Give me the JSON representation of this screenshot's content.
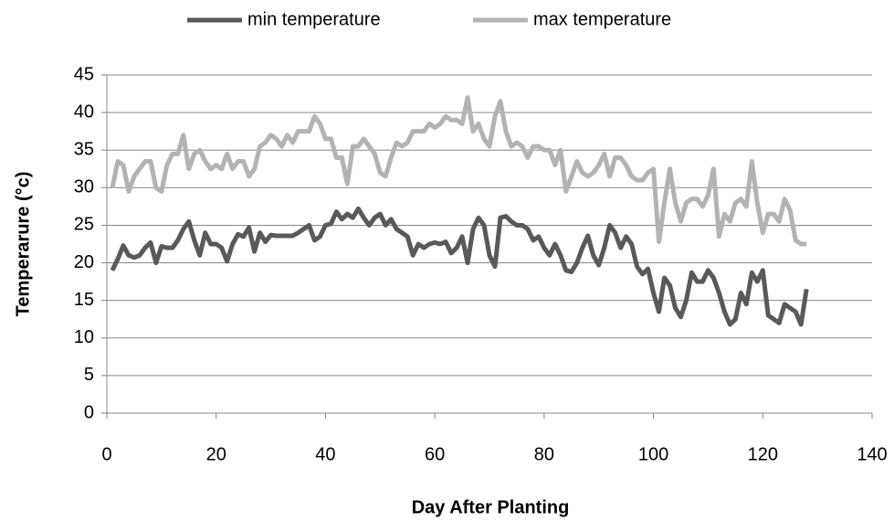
{
  "chart_data": {
    "type": "line",
    "x_label": "Day After Planting",
    "y_label": "Temperarure (°c)",
    "x": [
      1,
      2,
      3,
      4,
      5,
      6,
      7,
      8,
      9,
      10,
      11,
      12,
      13,
      14,
      15,
      16,
      17,
      18,
      19,
      20,
      21,
      22,
      23,
      24,
      25,
      26,
      27,
      28,
      29,
      30,
      31,
      32,
      33,
      34,
      35,
      36,
      37,
      38,
      39,
      40,
      41,
      42,
      43,
      44,
      45,
      46,
      47,
      48,
      49,
      50,
      51,
      52,
      53,
      54,
      55,
      56,
      57,
      58,
      59,
      60,
      61,
      62,
      63,
      64,
      65,
      66,
      67,
      68,
      69,
      70,
      71,
      72,
      73,
      74,
      75,
      76,
      77,
      78,
      79,
      80,
      81,
      82,
      83,
      84,
      85,
      86,
      87,
      88,
      89,
      90,
      91,
      92,
      93,
      94,
      95,
      96,
      97,
      98,
      99,
      100,
      101,
      102,
      103,
      104,
      105,
      106,
      107,
      108,
      109,
      110,
      111,
      112,
      113,
      114,
      115,
      116,
      117,
      118,
      119,
      120,
      121,
      122,
      123,
      124,
      125,
      126,
      127,
      128
    ],
    "series": [
      {
        "name": "min temperature",
        "color": "#595959",
        "values": [
          19,
          20.5,
          22.3,
          21,
          20.7,
          21,
          22,
          22.7,
          20,
          22.2,
          22,
          22,
          23,
          24.5,
          25.5,
          23,
          21,
          24,
          22.5,
          22.5,
          22,
          20.2,
          22.5,
          23.8,
          23.5,
          24.7,
          21.5,
          24,
          22.8,
          23.7,
          23.6,
          23.6,
          23.6,
          23.6,
          24,
          24.5,
          25,
          23,
          23.5,
          25,
          25.2,
          26.8,
          25.8,
          26.5,
          26,
          27.2,
          26,
          25,
          26,
          26.5,
          25,
          25.8,
          24.5,
          24,
          23.5,
          21,
          22.5,
          22,
          22.5,
          22.7,
          22.5,
          22.8,
          21.3,
          22,
          23.5,
          20,
          24.5,
          26,
          25,
          21,
          19.5,
          26,
          26.2,
          25.5,
          25,
          25,
          24.5,
          23,
          23.5,
          22,
          21,
          22.5,
          21,
          19,
          18.8,
          20,
          22,
          23.6,
          21,
          19.7,
          22,
          25,
          24,
          22,
          23.5,
          22.5,
          19.5,
          18.5,
          19.2,
          16,
          13.5,
          18,
          17,
          14,
          12.8,
          15,
          18.7,
          17.5,
          17.5,
          19,
          18,
          16,
          13.5,
          11.8,
          12.5,
          16,
          14.5,
          18.7,
          17.5,
          19,
          13,
          12.5,
          12,
          14.5,
          14,
          13.5,
          11.8,
          16.5
        ]
      },
      {
        "name": "max temperature",
        "color": "#b3b3b3",
        "values": [
          30,
          33.5,
          33,
          29.5,
          31.5,
          32.5,
          33.5,
          33.5,
          30,
          29.5,
          33,
          34.5,
          34.5,
          37,
          32.5,
          34.5,
          35,
          33.5,
          32.5,
          33,
          32.5,
          34.5,
          32.5,
          33.5,
          33.5,
          31.5,
          32.5,
          35.5,
          36,
          37,
          36.5,
          35.5,
          37,
          36,
          37.5,
          37.5,
          37.5,
          39.5,
          38.5,
          36.5,
          36.5,
          34,
          34,
          30.5,
          35.5,
          35.5,
          36.5,
          35.5,
          34.5,
          32,
          31.5,
          34,
          36,
          35.5,
          36,
          37.5,
          37.5,
          37.5,
          38.5,
          38,
          38.5,
          39.5,
          39,
          39,
          38.5,
          42,
          37.5,
          38.5,
          36.5,
          35.5,
          39.5,
          41.5,
          37.5,
          35.5,
          36,
          35.5,
          34,
          35.5,
          35.5,
          35,
          35,
          33,
          35,
          29.5,
          31.5,
          33.5,
          32,
          31.5,
          32,
          33,
          34.5,
          31.5,
          34,
          34,
          33,
          31.5,
          31,
          31,
          32,
          32.5,
          22.8,
          28,
          32.5,
          28,
          25.5,
          28,
          28.5,
          28.5,
          27.5,
          29,
          32.5,
          23.5,
          26.5,
          25.5,
          28,
          28.5,
          27.5,
          33.5,
          28,
          24,
          26.5,
          26.5,
          25.5,
          28.5,
          27,
          23,
          22.5,
          22.5
        ]
      }
    ],
    "xlim": [
      0,
      140
    ],
    "xticks": [
      0,
      20,
      40,
      60,
      80,
      100,
      120,
      140
    ],
    "ylim": [
      0,
      45
    ],
    "yticks": [
      0,
      5,
      10,
      15,
      20,
      25,
      30,
      35,
      40,
      45
    ],
    "grid": true,
    "legend": "top"
  }
}
